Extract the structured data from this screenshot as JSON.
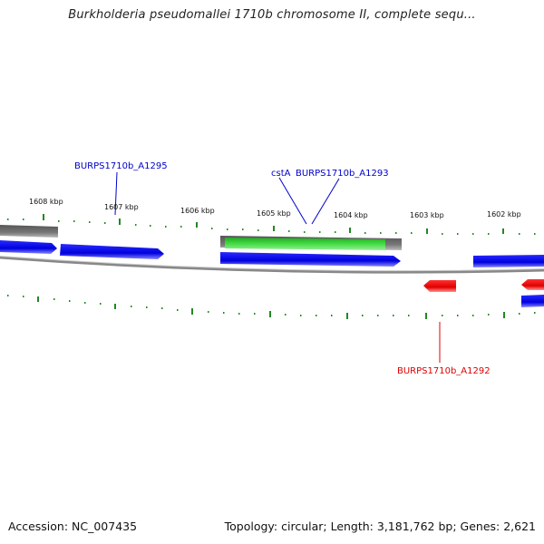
{
  "title": "Burkholderia pseudomallei 1710b chromosome II, complete sequ...",
  "kbp_labels": [
    "1608 kbp",
    "1607 kbp",
    "1606 kbp",
    "1605 kbp",
    "1604 kbp",
    "1603 kbp",
    "1602 kbp"
  ],
  "genes": [
    {
      "name": "BURPS1710b_A1295",
      "color": "#0000cc"
    },
    {
      "name": "cstA",
      "color": "#0000cc"
    },
    {
      "name": "BURPS1710b_A1293",
      "color": "#0000cc"
    },
    {
      "name": "BURPS1710b_A1292",
      "color": "#dd0000"
    }
  ],
  "colors": {
    "forward_gene": "#0000ee",
    "reverse_gene": "#ee0000",
    "highlight_gene": "#33cc33",
    "region": "#777777",
    "backbone": "#888888",
    "ticks": "#228822"
  },
  "footer": {
    "accession": "Accession: NC_007435",
    "summary": "Topology: circular; Length: 3,181,762 bp; Genes: 2,621"
  }
}
